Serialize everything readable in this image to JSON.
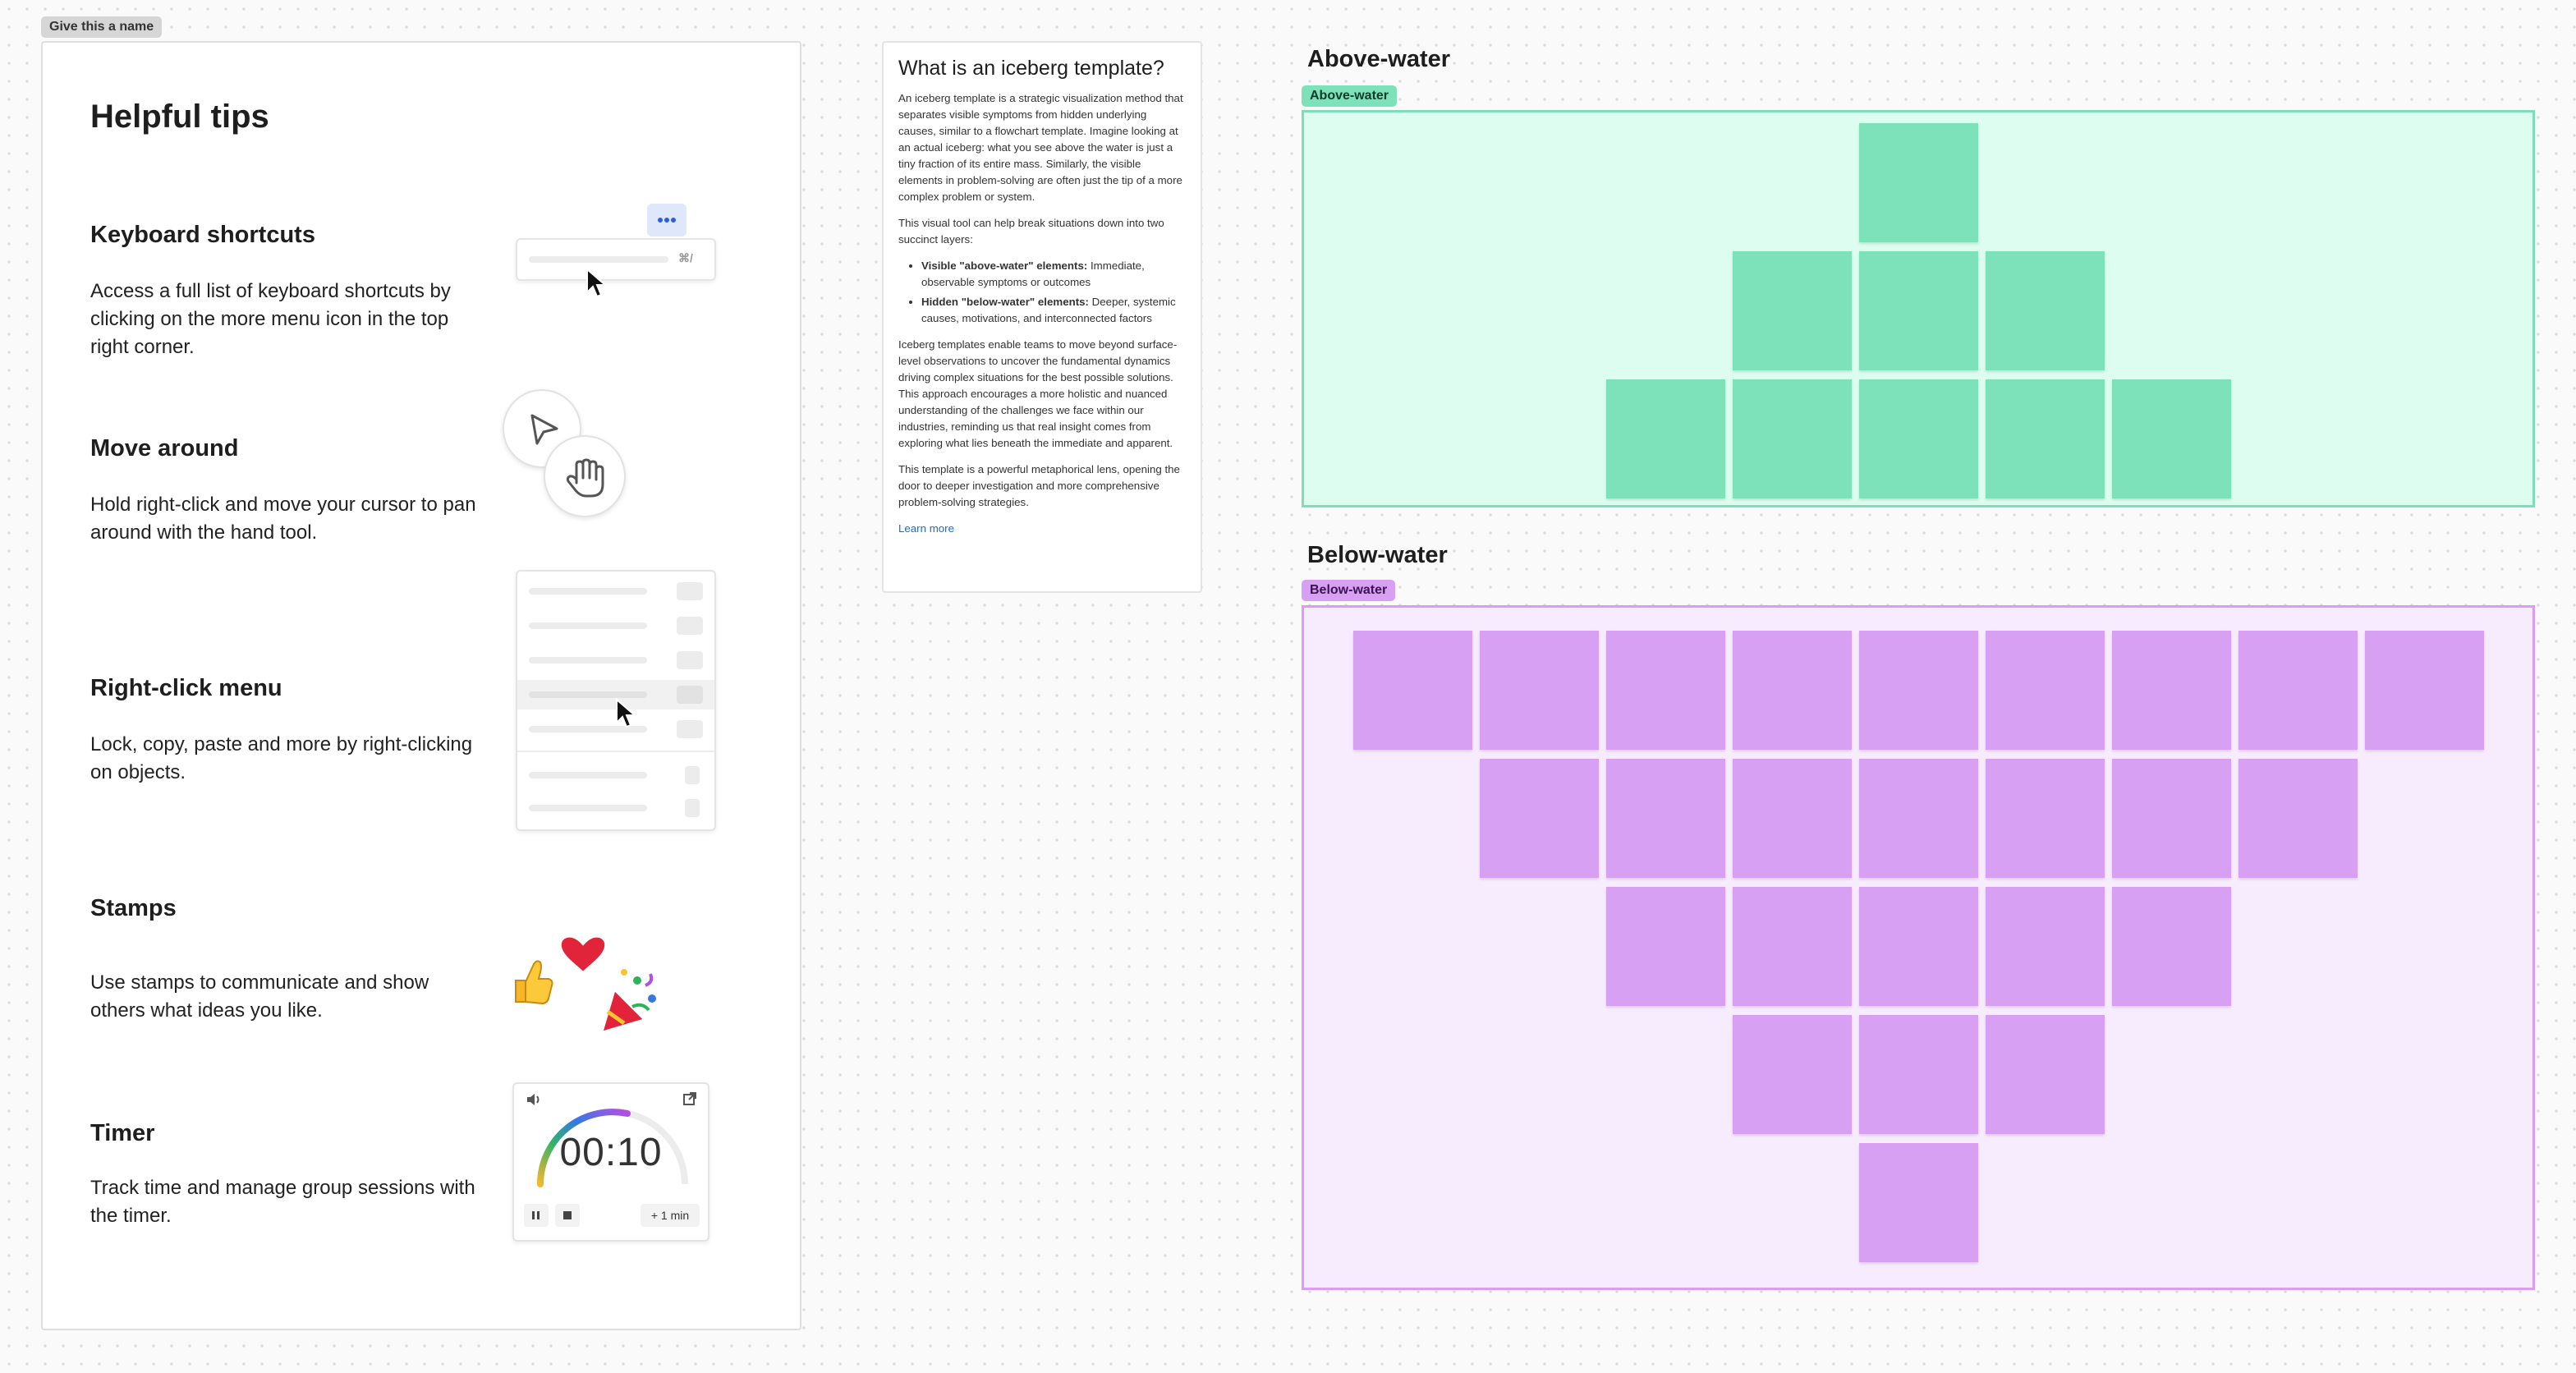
{
  "board_tag": "Give this a name",
  "tips": {
    "title": "Helpful tips",
    "items": [
      {
        "heading": "Keyboard shortcuts",
        "body": "Access a full list of keyboard shortcuts by clicking on the more menu icon in the top right corner.",
        "shortcut": "⌘/"
      },
      {
        "heading": "Move around",
        "body": "Hold right-click and move your cursor to pan around with the hand tool."
      },
      {
        "heading": "Right-click menu",
        "body": "Lock, copy, paste and more by right-clicking on objects."
      },
      {
        "heading": "Stamps",
        "body": "Use stamps to communicate and show others what ideas you like."
      },
      {
        "heading": "Timer",
        "body": "Track time and manage group sessions with the timer.",
        "timer_value": "00:10",
        "timer_add": "+ 1 min"
      }
    ]
  },
  "info": {
    "title": "What is an iceberg template?",
    "p1": "An iceberg template is a strategic visualization method that separates visible symptoms from hidden underlying causes, similar to a flowchart template. Imagine looking at an actual iceberg: what you see above the water is just a tiny fraction of its entire mass. Similarly, the visible elements in problem-solving are often just the tip of a more complex problem or system.",
    "p2": "This visual tool can help break situations down into two succinct layers:",
    "bullets": [
      {
        "bold": "Visible \"above-water\" elements:",
        "text": " Immediate, observable symptoms or outcomes"
      },
      {
        "bold": "Hidden \"below-water\" elements:",
        "text": " Deeper, systemic causes, motivations, and interconnected factors"
      }
    ],
    "p3": "Iceberg templates enable teams to move beyond surface-level observations to uncover the fundamental dynamics driving complex situations for the best possible solutions. This approach encourages a more holistic and nuanced understanding of the challenges we face within our industries, reminding us that real insight comes from exploring what lies beneath the immediate and apparent.",
    "p4": "This template is a powerful metaphorical lens, opening the door to deeper investigation and more comprehensive problem-solving strategies.",
    "link": "Learn more"
  },
  "above": {
    "title": "Above-water",
    "tag": "Above-water",
    "rows": [
      1,
      3,
      5
    ]
  },
  "below": {
    "title": "Below-water",
    "tag": "Below-water",
    "rows": [
      9,
      7,
      5,
      3,
      1
    ]
  },
  "colors": {
    "above_fill": "#dcfdf0",
    "above_border": "#7ddfb9",
    "above_sticky": "#7de2b9",
    "below_fill": "#f7ecfd",
    "below_border": "#dc9cf1",
    "below_sticky": "#d8a0f3",
    "link": "#1a6bd6"
  }
}
